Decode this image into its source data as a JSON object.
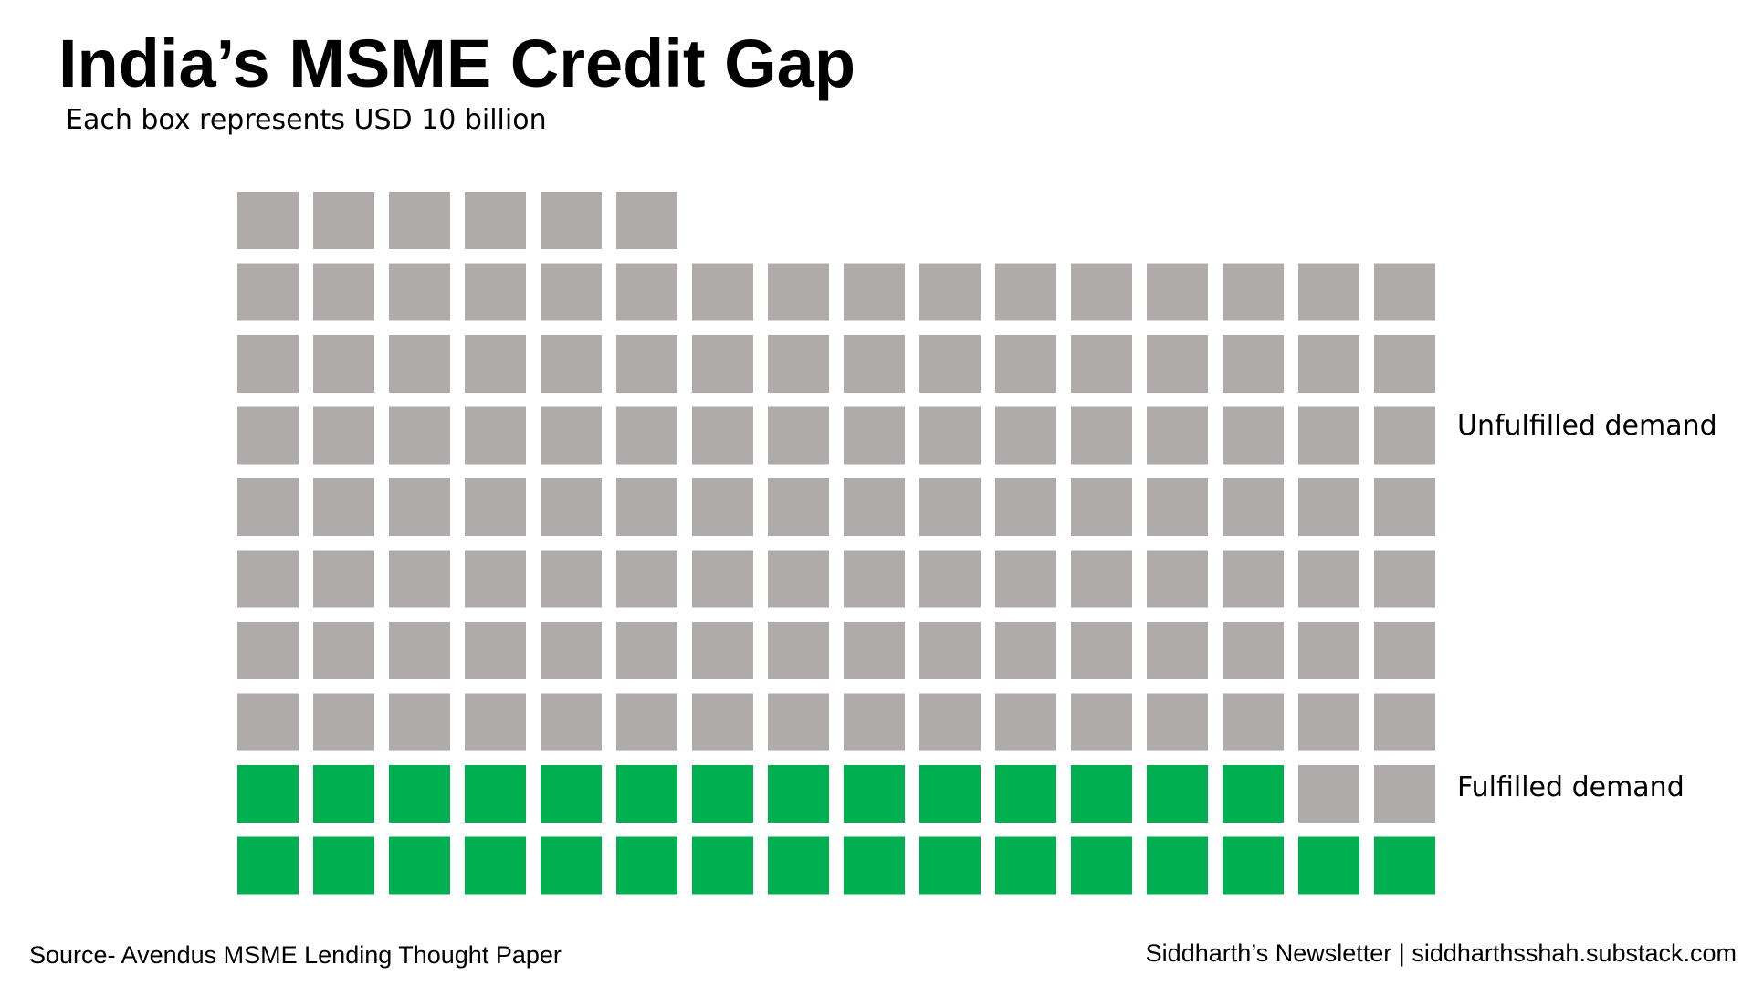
{
  "title": "India’s MSME Credit Gap",
  "subtitle": "Each box represents USD 10 billion",
  "chart_data": {
    "type": "waffle",
    "columns": 16,
    "unit": "USD 10 billion",
    "series": [
      {
        "name": "Unfulfilled demand",
        "boxes": 120,
        "value_usd_billion": 1200,
        "color": "#AFABAB"
      },
      {
        "name": "Fulfilled demand",
        "boxes": 30,
        "value_usd_billion": 300,
        "color": "#00B050"
      }
    ],
    "total_boxes": 150
  },
  "footer": {
    "source": "Source- Avendus MSME Lending Thought Paper",
    "credit": "Siddharth’s Newsletter | siddharthsshah.substack.com"
  }
}
